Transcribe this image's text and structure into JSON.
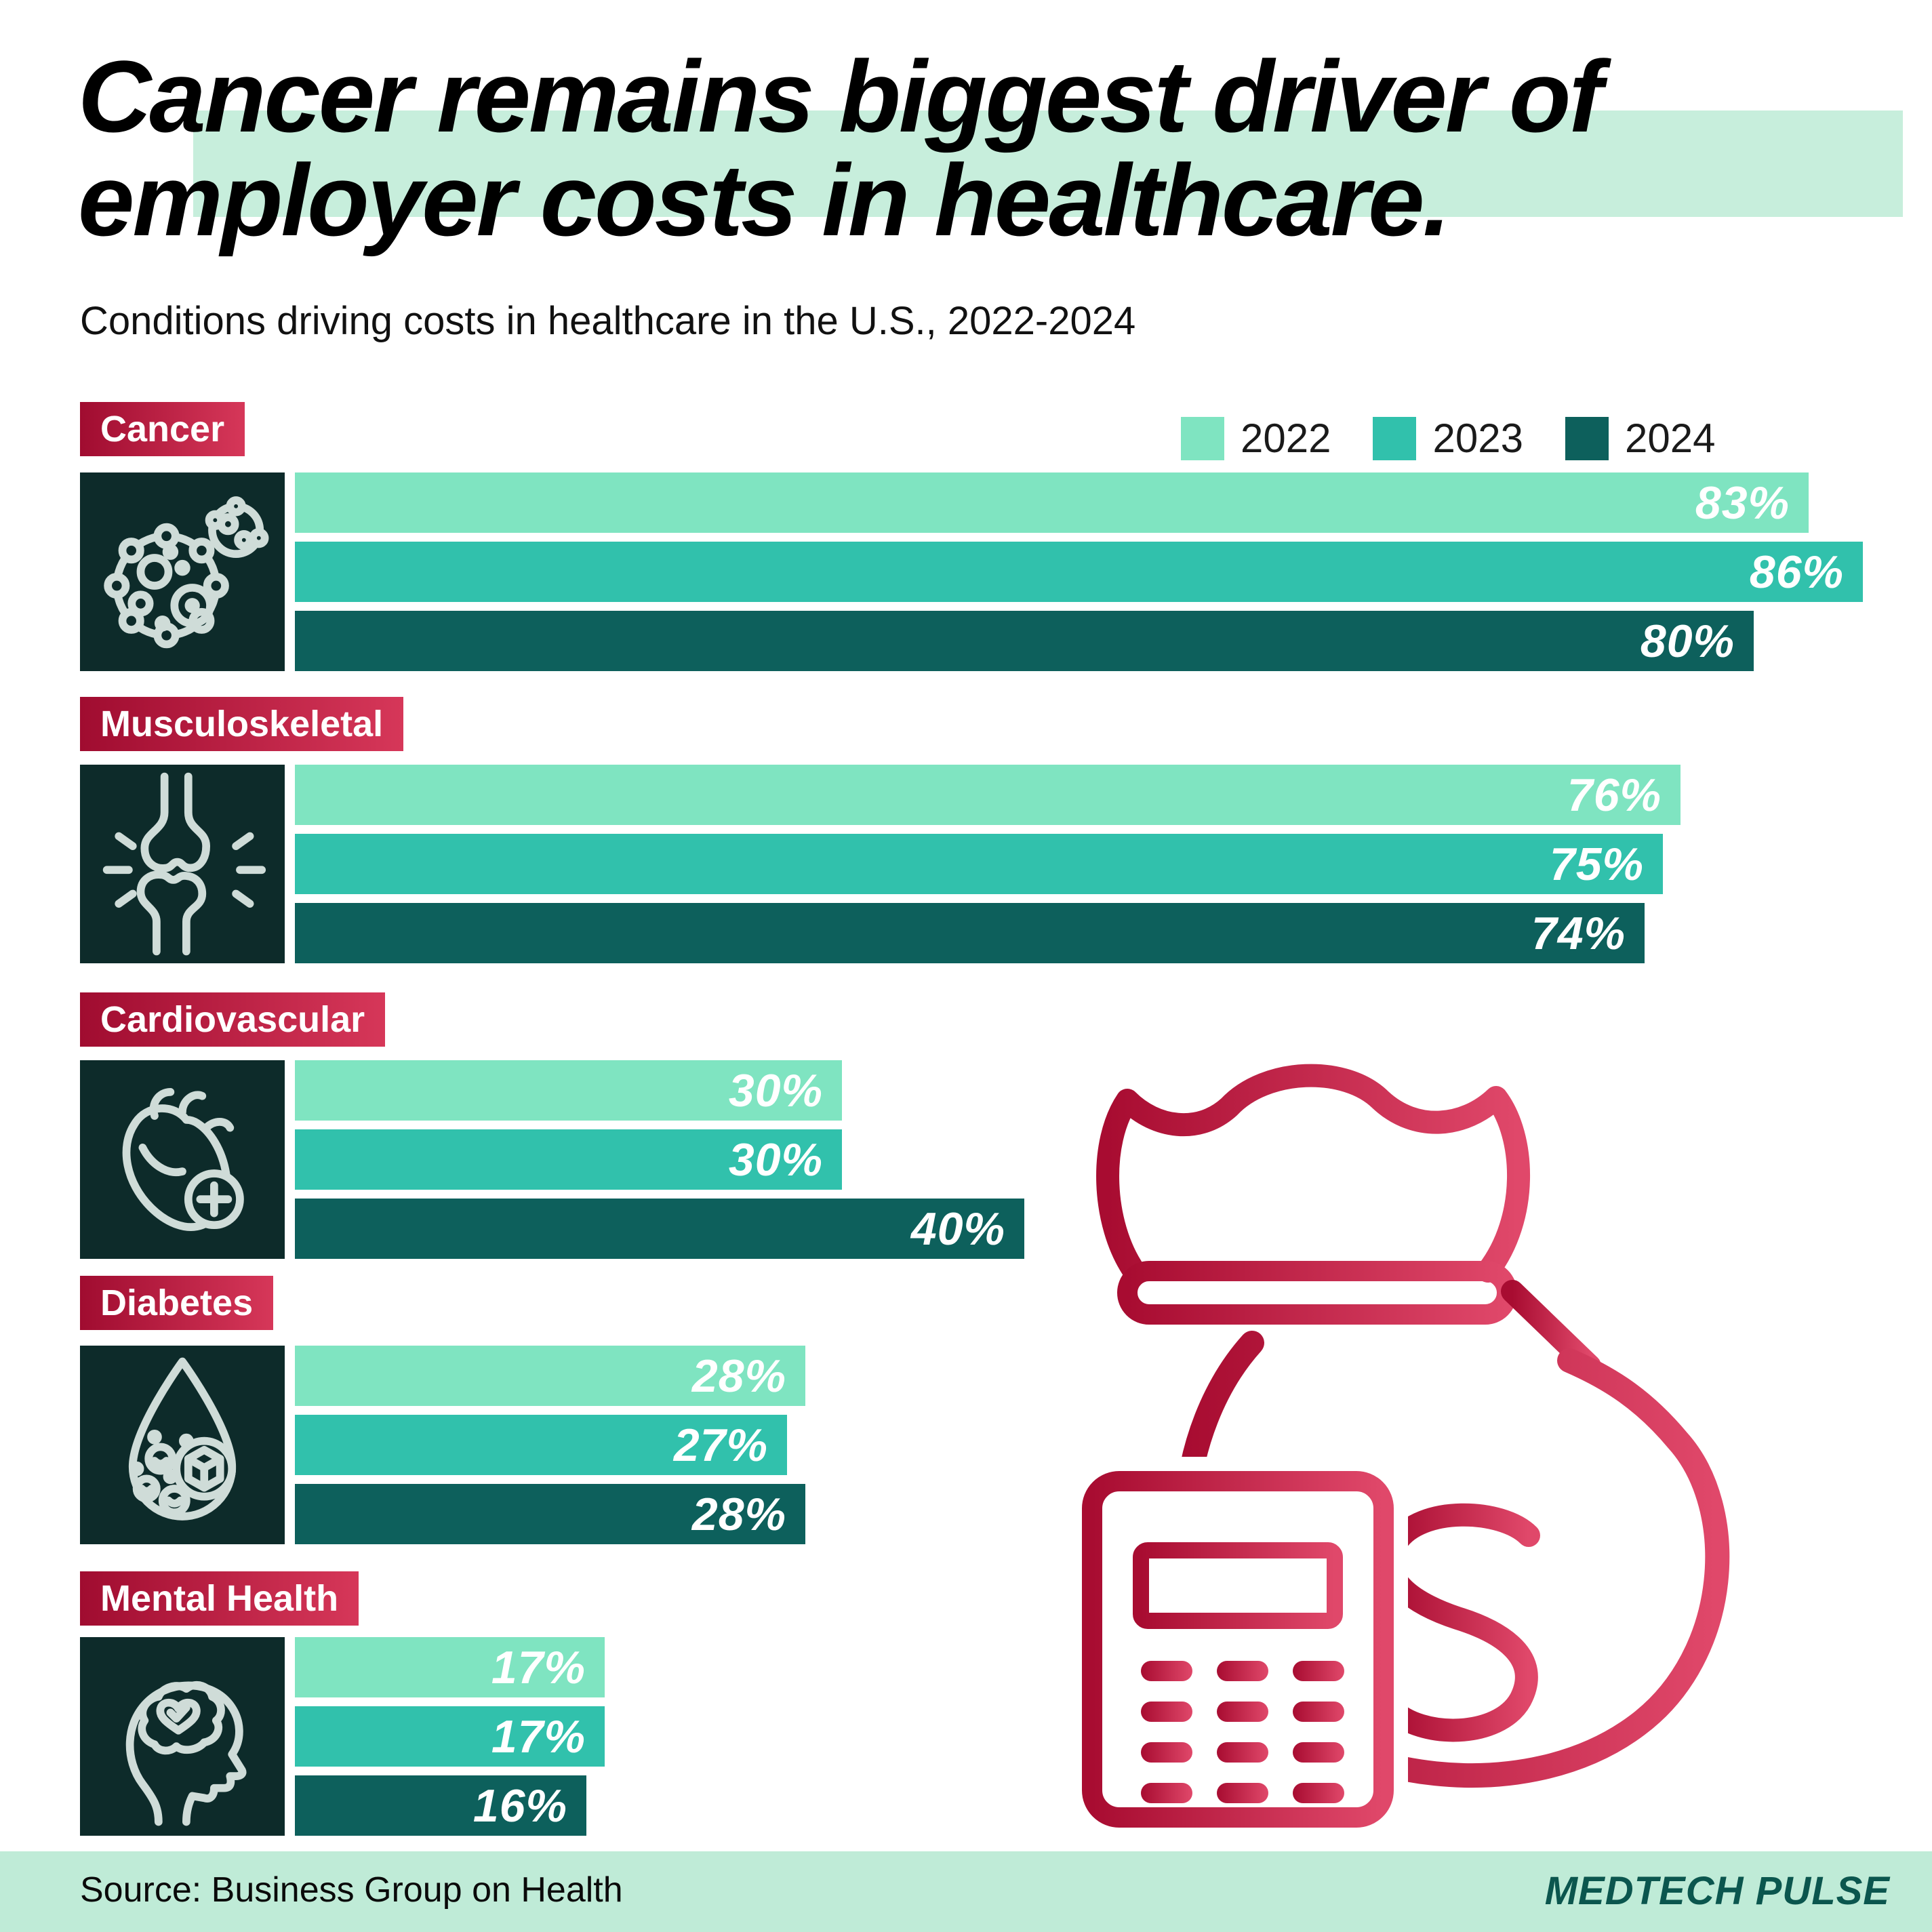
{
  "title": {
    "line1": "Cancer remains biggest driver of",
    "line2": "employer costs in healthcare."
  },
  "subtitle": "Conditions driving costs in healthcare in the U.S., 2022-2024",
  "chart_data": {
    "type": "bar",
    "orientation": "horizontal",
    "title": "Conditions driving costs in healthcare in the U.S., 2022-2024",
    "categories": [
      "Cancer",
      "Musculoskeletal",
      "Cardiovascular",
      "Diabetes",
      "Mental Health"
    ],
    "series": [
      {
        "name": "2022",
        "color": "#7FE4C1",
        "values": [
          83,
          76,
          30,
          28,
          17
        ]
      },
      {
        "name": "2023",
        "color": "#31C1AC",
        "values": [
          86,
          75,
          30,
          27,
          17
        ]
      },
      {
        "name": "2024",
        "color": "#0D605C",
        "values": [
          80,
          74,
          40,
          28,
          16
        ]
      }
    ],
    "value_suffix": "%",
    "xlim": [
      0,
      100
    ],
    "legend_position": "top-right",
    "grid": false
  },
  "icons": [
    "cancer-cell-icon",
    "joint-icon",
    "heart-icon",
    "blood-drop-icon",
    "head-brain-icon"
  ],
  "footer": {
    "source": "Source: Business Group on Health",
    "brand": "MEDTECH PULSE"
  },
  "colors": {
    "background": "#FFFFFF",
    "title_text": "#000000",
    "title_highlight": "#C7EEDC",
    "category_label_gradient_start": "#A00C30",
    "category_label_gradient_end": "#D63759",
    "category_label_text": "#FFFFFF",
    "icon_tile_background": "#0D2B2A",
    "icon_stroke": "#CFDCD8",
    "bar_value_text": "#FFFFFF",
    "footer_band": "#BFEBD7",
    "brand_text": "#0B564E",
    "illustration_gradient_start": "#A80C31",
    "illustration_gradient_end": "#E0486A"
  }
}
